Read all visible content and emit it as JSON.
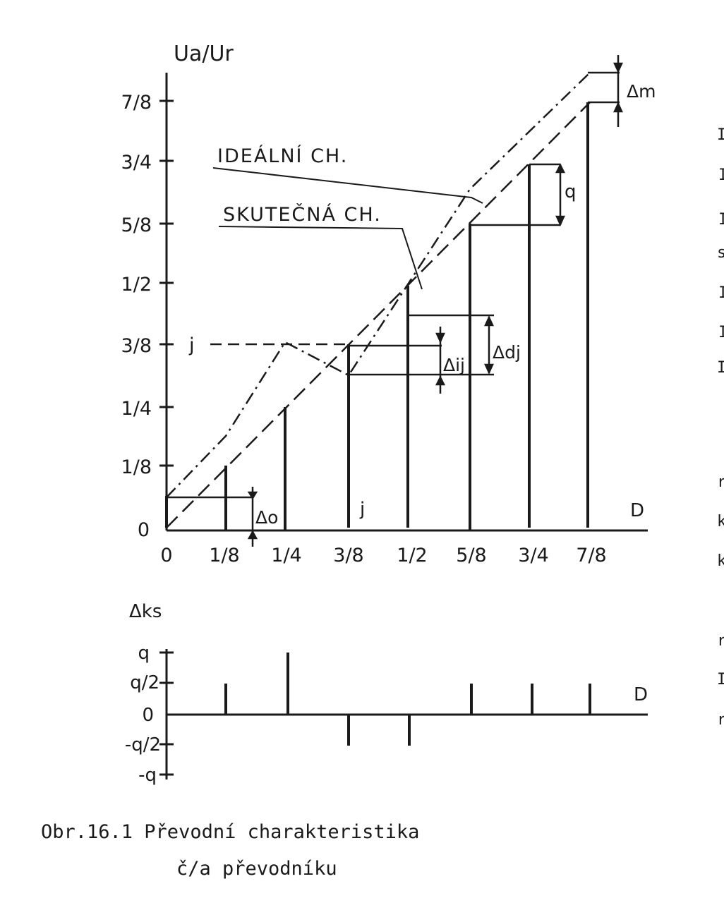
{
  "upper_plot": {
    "y_axis_label": "Ua/Ur",
    "x_axis_label": "D",
    "y_ticks": [
      "0",
      "1/8",
      "1/4",
      "3/8",
      "1/2",
      "5/8",
      "3/4",
      "7/8"
    ],
    "x_ticks": [
      "0",
      "1/8",
      "1/4",
      "3/8",
      "1/2",
      "5/8",
      "3/4",
      "7/8"
    ],
    "labels": {
      "ideal": "IDEÁLNÍ CH.",
      "real": "SKUTEČNÁ CH.",
      "delta_m": "Δm",
      "q": "q",
      "delta_ij": "Δij",
      "delta_dj": "Δdj",
      "delta_o": "Δo",
      "j_y": "j",
      "j_x": "j"
    },
    "output_values": [
      0.0625,
      0.125,
      0.25,
      0.375,
      0.5625,
      0.625,
      0.75,
      0.875
    ]
  },
  "lower_plot": {
    "y_axis_label": "Δks",
    "x_axis_label": "D",
    "y_ticks": [
      "q",
      "q/2",
      "0",
      "-q/2",
      "-q"
    ],
    "errors_in_q": [
      0.5,
      1,
      -0.5,
      -0.5,
      0.5,
      0.5,
      0.5
    ]
  },
  "caption": {
    "line1": "Obr.16.1 Převodní charakteristika",
    "line2": "č/a převodníku"
  },
  "margin_text": {
    "letters": [
      "I",
      "I",
      "I",
      "s",
      "I",
      "I",
      "I",
      "r",
      "k",
      "k",
      "r",
      "I",
      "r"
    ]
  }
}
